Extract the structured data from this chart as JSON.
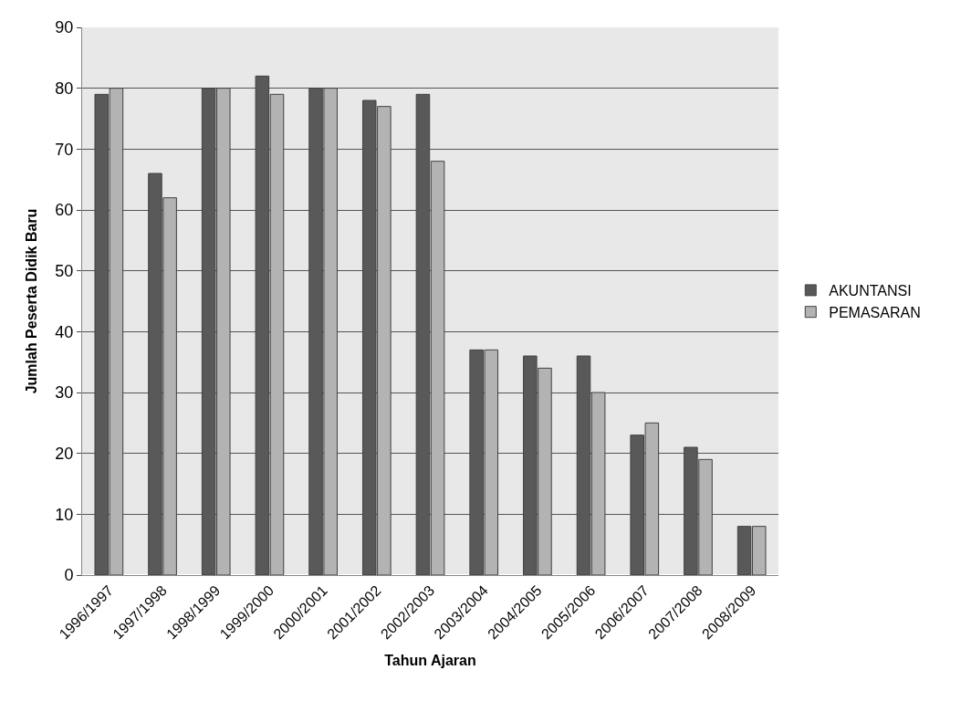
{
  "chart_data": {
    "type": "bar",
    "xlabel": "Tahun Ajaran",
    "ylabel": "Jumlah Peserta Didik Baru",
    "categories": [
      "1996/1997",
      "1997/1998",
      "1998/1999",
      "1999/2000",
      "2000/2001",
      "2001/2002",
      "2002/2003",
      "2003/2004",
      "2004/2005",
      "2005/2006",
      "2006/2007",
      "2007/2008",
      "2008/2009"
    ],
    "series": [
      {
        "name": "AKUNTANSI",
        "color": "#595959",
        "values": [
          79,
          66,
          80,
          82,
          80,
          78,
          79,
          37,
          36,
          36,
          23,
          21,
          8
        ]
      },
      {
        "name": "PEMASARAN",
        "color": "#b3b3b3",
        "values": [
          80,
          62,
          80,
          79,
          80,
          77,
          68,
          37,
          34,
          30,
          25,
          19,
          8
        ]
      }
    ],
    "ylim": [
      0,
      90
    ],
    "yticks": [
      0,
      10,
      20,
      30,
      40,
      50,
      60,
      70,
      80,
      90
    ],
    "grid": "y",
    "legend": "right"
  }
}
